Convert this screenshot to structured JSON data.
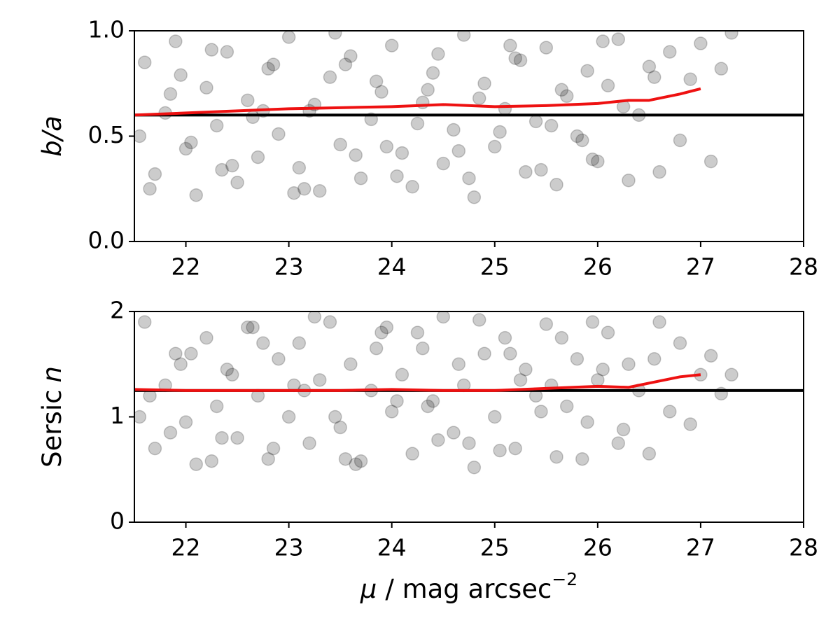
{
  "chart_data": [
    {
      "type": "scatter",
      "ylabel": [
        {
          "text": "b/a",
          "italic": true
        }
      ],
      "xlim": [
        21.5,
        28
      ],
      "xticks": [
        22,
        23,
        24,
        25,
        26,
        27,
        28
      ],
      "ylim": [
        0,
        1
      ],
      "yticks": [
        {
          "value": 0,
          "label": "0.0"
        },
        0.5,
        {
          "value": 1,
          "label": "1.0"
        }
      ],
      "points": {
        "color": "#000000",
        "alpha": 0.2,
        "x": [
          21.6,
          21.7,
          21.8,
          21.9,
          22.0,
          22.1,
          22.2,
          22.3,
          22.4,
          22.5,
          22.6,
          22.7,
          22.8,
          22.9,
          23.0,
          23.1,
          23.2,
          23.3,
          23.4,
          23.5,
          23.6,
          23.7,
          23.8,
          23.9,
          24.0,
          24.1,
          24.2,
          24.3,
          24.4,
          24.5,
          24.6,
          24.7,
          24.8,
          24.9,
          25.0,
          25.1,
          25.2,
          25.3,
          25.4,
          25.5,
          25.6,
          25.7,
          25.8,
          25.9,
          26.0,
          26.1,
          26.2,
          26.3,
          26.4,
          26.5,
          26.6,
          26.7,
          26.8,
          26.9,
          27.0,
          27.1,
          27.2,
          27.3,
          21.65,
          21.85,
          22.05,
          22.25,
          22.45,
          22.65,
          22.85,
          23.05,
          23.25,
          23.45,
          23.65,
          23.85,
          24.05,
          24.25,
          24.45,
          24.65,
          24.85,
          25.05,
          25.25,
          25.45,
          25.65,
          25.85,
          26.05,
          26.25,
          26.55,
          21.55,
          21.95,
          22.35,
          22.75,
          23.15,
          23.55,
          23.95,
          24.35,
          24.75,
          25.15,
          25.55,
          25.95
        ],
        "values": [
          0.85,
          0.32,
          0.61,
          0.95,
          0.44,
          0.22,
          0.73,
          0.55,
          0.9,
          0.28,
          0.67,
          0.4,
          0.82,
          0.51,
          0.97,
          0.35,
          0.62,
          0.24,
          0.78,
          0.46,
          0.88,
          0.3,
          0.58,
          0.71,
          0.93,
          0.42,
          0.26,
          0.66,
          0.8,
          0.37,
          0.53,
          0.98,
          0.21,
          0.75,
          0.45,
          0.63,
          0.87,
          0.33,
          0.57,
          0.92,
          0.27,
          0.69,
          0.5,
          0.81,
          0.38,
          0.74,
          0.96,
          0.29,
          0.6,
          0.83,
          0.33,
          0.9,
          0.48,
          0.77,
          0.94,
          0.38,
          0.82,
          0.99,
          0.25,
          0.7,
          0.47,
          0.91,
          0.36,
          0.59,
          0.84,
          0.23,
          0.65,
          0.99,
          0.41,
          0.76,
          0.31,
          0.56,
          0.89,
          0.43,
          0.68,
          0.52,
          0.86,
          0.34,
          0.72,
          0.48,
          0.95,
          0.64,
          0.78,
          0.5,
          0.79,
          0.34,
          0.62,
          0.25,
          0.84,
          0.45,
          0.72,
          0.3,
          0.93,
          0.55,
          0.39
        ]
      },
      "trend": {
        "color": "#ee1111",
        "x": [
          21.5,
          22,
          22.5,
          23,
          23.5,
          24,
          24.5,
          25,
          25.5,
          26,
          26.3,
          26.5,
          26.8,
          27.0
        ],
        "values": [
          0.6,
          0.61,
          0.62,
          0.63,
          0.635,
          0.64,
          0.65,
          0.64,
          0.645,
          0.655,
          0.67,
          0.67,
          0.7,
          0.725
        ]
      },
      "hline": {
        "value": 0.6,
        "color": "#000000"
      }
    },
    {
      "type": "scatter",
      "ylabel": [
        {
          "text": "Sersic",
          "italic": false
        },
        {
          "text": "n",
          "italic": true
        }
      ],
      "xlabel": [
        {
          "text": "μ",
          "italic": true
        },
        {
          "text": "/ mag arcsec"
        },
        {
          "text": "−2",
          "superscript": true
        }
      ],
      "xlim": [
        21.5,
        28
      ],
      "xticks": [
        22,
        23,
        24,
        25,
        26,
        27,
        28
      ],
      "ylim": [
        0,
        2
      ],
      "yticks": [
        0,
        1,
        2
      ],
      "points": {
        "color": "#000000",
        "alpha": 0.2,
        "x": [
          21.6,
          21.7,
          21.8,
          21.9,
          22.0,
          22.1,
          22.2,
          22.3,
          22.4,
          22.5,
          22.6,
          22.7,
          22.8,
          22.9,
          23.0,
          23.1,
          23.2,
          23.3,
          23.4,
          23.5,
          23.6,
          23.7,
          23.8,
          23.9,
          24.0,
          24.1,
          24.2,
          24.3,
          24.4,
          24.5,
          24.6,
          24.7,
          24.8,
          24.9,
          25.0,
          25.1,
          25.2,
          25.3,
          25.4,
          25.5,
          25.6,
          25.7,
          25.8,
          25.9,
          26.0,
          26.1,
          26.2,
          26.3,
          26.4,
          26.5,
          26.6,
          26.7,
          26.8,
          26.9,
          27.0,
          27.1,
          27.2,
          27.3,
          21.65,
          21.85,
          22.05,
          22.25,
          22.45,
          22.65,
          22.85,
          23.05,
          23.25,
          23.45,
          23.65,
          23.85,
          24.05,
          24.25,
          24.45,
          24.65,
          24.85,
          25.05,
          25.25,
          25.45,
          25.65,
          25.85,
          26.05,
          26.25,
          26.55,
          21.55,
          21.95,
          22.35,
          22.75,
          23.15,
          23.55,
          23.95,
          24.35,
          24.75,
          25.15,
          25.55,
          25.95
        ],
        "values": [
          1.9,
          0.7,
          1.3,
          1.6,
          0.95,
          0.55,
          1.75,
          1.1,
          1.45,
          0.8,
          1.85,
          1.2,
          0.6,
          1.55,
          1.0,
          1.7,
          0.75,
          1.35,
          1.9,
          0.9,
          1.5,
          0.58,
          1.25,
          1.8,
          1.05,
          1.4,
          0.65,
          1.65,
          1.15,
          1.95,
          0.85,
          1.3,
          0.52,
          1.6,
          1.0,
          1.75,
          0.7,
          1.45,
          1.2,
          1.88,
          0.62,
          1.1,
          1.55,
          0.95,
          1.35,
          1.8,
          0.75,
          1.5,
          1.25,
          0.65,
          1.9,
          1.05,
          1.7,
          0.93,
          1.4,
          1.58,
          1.22,
          1.4,
          1.2,
          0.85,
          1.6,
          0.58,
          1.4,
          1.85,
          0.7,
          1.3,
          1.95,
          1.0,
          0.55,
          1.65,
          1.15,
          1.8,
          0.78,
          1.5,
          1.92,
          0.68,
          1.35,
          1.05,
          1.75,
          0.6,
          1.45,
          0.88,
          1.55,
          1.0,
          1.5,
          0.8,
          1.7,
          1.25,
          0.6,
          1.85,
          1.1,
          0.75,
          1.6,
          1.3,
          1.9
        ]
      },
      "trend": {
        "color": "#ee1111",
        "x": [
          21.5,
          22,
          22.5,
          23,
          23.5,
          24,
          24.5,
          25,
          25.5,
          26,
          26.3,
          26.5,
          26.8,
          27.0
        ],
        "values": [
          1.26,
          1.25,
          1.25,
          1.25,
          1.25,
          1.26,
          1.25,
          1.25,
          1.27,
          1.29,
          1.28,
          1.32,
          1.38,
          1.4
        ]
      },
      "hline": {
        "value": 1.25,
        "color": "#000000"
      }
    }
  ]
}
